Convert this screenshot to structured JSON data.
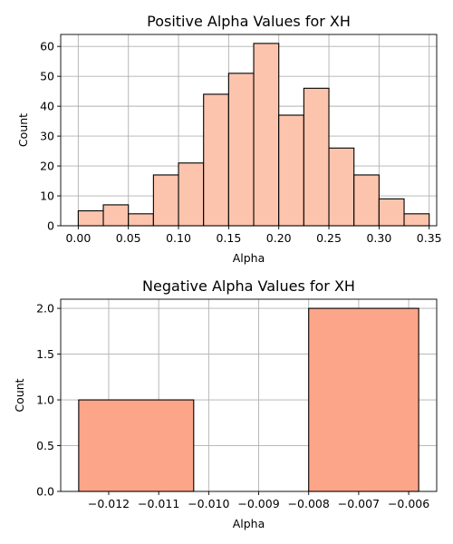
{
  "chart_data": [
    {
      "type": "bar",
      "title": "Positive Alpha Values for XH",
      "xlabel": "Alpha",
      "ylabel": "Count",
      "xlim": [
        -0.0175,
        0.3575
      ],
      "ylim": [
        0,
        64
      ],
      "grid": true,
      "bar_color": "#fcc4ad",
      "edge_color": "#000000",
      "bin_edges": [
        0.0,
        0.025,
        0.05,
        0.075,
        0.1,
        0.125,
        0.15,
        0.175,
        0.2,
        0.225,
        0.25,
        0.275,
        0.3,
        0.325,
        0.35
      ],
      "values": [
        5,
        7,
        4,
        17,
        21,
        44,
        51,
        61,
        37,
        46,
        26,
        17,
        9,
        4
      ],
      "xticks": [
        0.0,
        0.05,
        0.1,
        0.15,
        0.2,
        0.25,
        0.3,
        0.35
      ],
      "xtick_labels": [
        "0.00",
        "0.05",
        "0.10",
        "0.15",
        "0.20",
        "0.25",
        "0.30",
        "0.35"
      ],
      "yticks": [
        0,
        10,
        20,
        30,
        40,
        50,
        60
      ],
      "ytick_labels": [
        "0",
        "10",
        "20",
        "30",
        "40",
        "50",
        "60"
      ]
    },
    {
      "type": "bar",
      "title": "Negative Alpha Values for XH",
      "xlabel": "Alpha",
      "ylabel": "Count",
      "xlim": [
        -0.01296,
        -0.00544
      ],
      "ylim": [
        0,
        2.1
      ],
      "grid": true,
      "bar_color": "#fca588",
      "edge_color": "#000000",
      "bin_edges": [
        -0.0126,
        -0.0103,
        -0.008,
        -0.0058
      ],
      "values": [
        1,
        0,
        2
      ],
      "xticks": [
        -0.012,
        -0.011,
        -0.01,
        -0.009,
        -0.008,
        -0.007,
        -0.006
      ],
      "xtick_labels": [
        "−0.012",
        "−0.011",
        "−0.010",
        "−0.009",
        "−0.008",
        "−0.007",
        "−0.006"
      ],
      "yticks": [
        0,
        0.5,
        1.0,
        1.5,
        2.0
      ],
      "ytick_labels": [
        "0.0",
        "0.5",
        "1.0",
        "1.5",
        "2.0"
      ]
    }
  ]
}
